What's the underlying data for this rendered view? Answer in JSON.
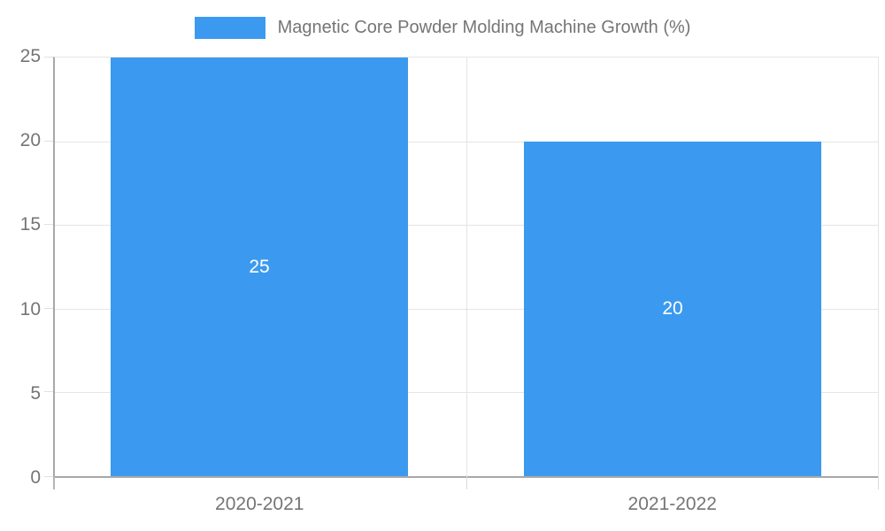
{
  "chart_data": {
    "type": "bar",
    "title": "",
    "legend_label": "Magnetic Core Powder Molding Machine Growth (%)",
    "legend_position": "top-center",
    "categories": [
      "2020-2021",
      "2021-2022"
    ],
    "values": [
      25,
      20
    ],
    "bar_value_labels": [
      "25",
      "20"
    ],
    "xlabel": "",
    "ylabel": "",
    "ylim": [
      0,
      25
    ],
    "ytick_interval": 5,
    "yticks": [
      0,
      5,
      10,
      15,
      20,
      25
    ],
    "ytick_labels_top_to_bottom": [
      "25",
      "20",
      "15",
      "10",
      "5",
      "0"
    ],
    "grid": true,
    "colors": {
      "bar": "#3B9AF0",
      "axis_line": "#A8A8A8",
      "gridline": "#E5E5E5",
      "tick_label": "#757575",
      "legend_text": "#757575",
      "bar_value_label": "#FFFFFF",
      "background": "#FFFFFF"
    }
  }
}
